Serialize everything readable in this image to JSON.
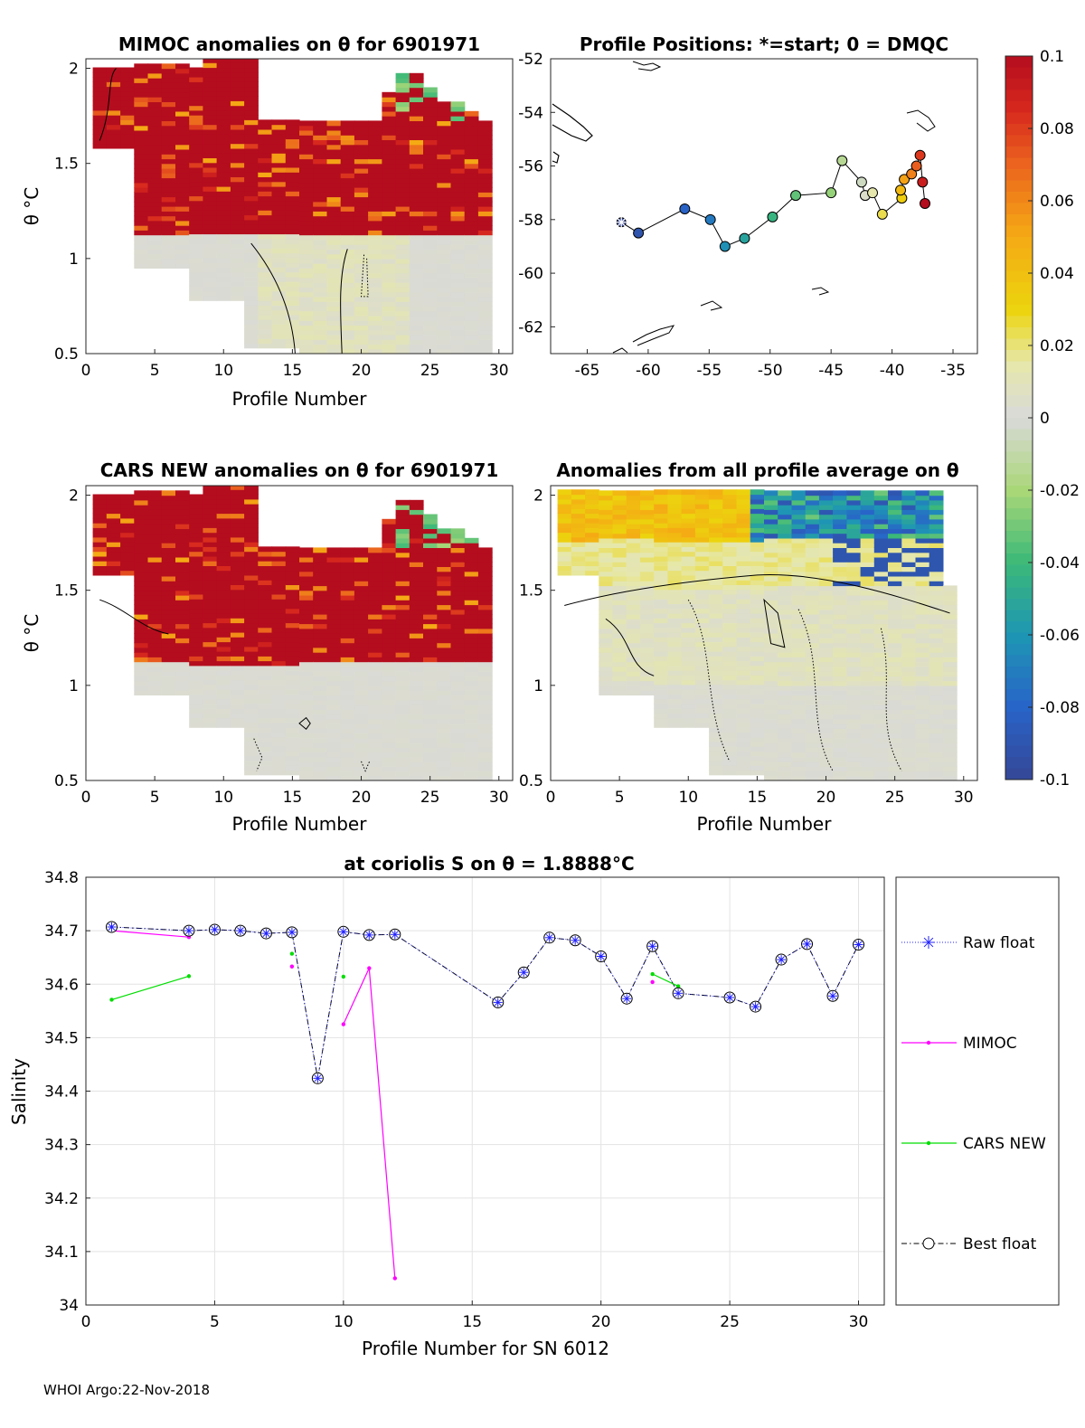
{
  "footer": "WHOI Argo:22-Nov-2018",
  "colorbar": {
    "ticks": [
      "0.1",
      "0.08",
      "0.06",
      "0.04",
      "0.02",
      "0",
      "-0.02",
      "-0.04",
      "-0.06",
      "-0.08",
      "-0.1"
    ],
    "colors": {
      "high": "#b40d1e",
      "mid": "#d9d9d9",
      "low": "#3b4ea0",
      "yellow": "#ecd40e"
    }
  },
  "chart_data": [
    {
      "id": "mimoc",
      "type": "heatmap",
      "title": "MIMOC anomalies on θ  for 6901971",
      "xlabel": "Profile Number",
      "ylabel": "θ °C",
      "xlim": [
        0,
        31
      ],
      "ylim": [
        0.5,
        2.05
      ],
      "xticks": [
        "0",
        "5",
        "10",
        "15",
        "20",
        "25",
        "30"
      ],
      "yticks": [
        "0.5",
        "1",
        "1.5",
        "2"
      ]
    },
    {
      "id": "map",
      "type": "scatter",
      "title": "Profile Positions: *=start; 0 = DMQC",
      "xlabel": "",
      "ylabel": "",
      "xlim": [
        -68,
        -33
      ],
      "ylim": [
        -63,
        -52
      ],
      "xticks": [
        "-65",
        "-60",
        "-55",
        "-50",
        "-45",
        "-40",
        "-35"
      ],
      "yticks": [
        "-52",
        "-54",
        "-56",
        "-58",
        "-60",
        "-62"
      ],
      "lon": [
        -62.2,
        -60.8,
        -57.0,
        -54.9,
        -53.7,
        -52.1,
        -49.8,
        -47.9,
        -45.0,
        -44.1,
        -42.5,
        -42.2,
        -41.6,
        -40.8,
        -39.2,
        -39.3,
        -39.0,
        -38.4,
        -38.0,
        -37.7,
        -37.5,
        -37.3
      ],
      "lat": [
        -58.1,
        -58.5,
        -57.6,
        -58.0,
        -59.0,
        -58.7,
        -57.9,
        -57.1,
        -57.0,
        -55.8,
        -56.6,
        -57.1,
        -57.0,
        -57.8,
        -57.2,
        -56.9,
        -56.5,
        -56.3,
        -56.0,
        -55.6,
        -56.6,
        -57.4
      ]
    },
    {
      "id": "cars",
      "type": "heatmap",
      "title": "CARS NEW anomalies on θ for 6901971",
      "xlabel": "Profile Number",
      "ylabel": "θ °C",
      "xlim": [
        0,
        31
      ],
      "ylim": [
        0.5,
        2.05
      ],
      "xticks": [
        "0",
        "5",
        "10",
        "15",
        "20",
        "25",
        "30"
      ],
      "yticks": [
        "0.5",
        "1",
        "1.5",
        "2"
      ]
    },
    {
      "id": "allavg",
      "type": "heatmap",
      "title": "Anomalies from all profile average on θ",
      "xlabel": "Profile Number",
      "ylabel": "",
      "xlim": [
        0,
        31
      ],
      "ylim": [
        0.5,
        2.05
      ],
      "xticks": [
        "0",
        "5",
        "10",
        "15",
        "20",
        "25",
        "30"
      ],
      "yticks": [
        "0.5",
        "1",
        "1.5",
        "2"
      ]
    },
    {
      "id": "salinity",
      "type": "line",
      "title": "at coriolis S on θ = 1.8888°C",
      "xlabel": "Profile Number for SN 6012",
      "ylabel": "Salinity",
      "xlim": [
        0,
        31
      ],
      "ylim": [
        34.0,
        34.8
      ],
      "xticks": [
        "0",
        "5",
        "10",
        "15",
        "20",
        "25",
        "30"
      ],
      "yticks": [
        "34",
        "34.1",
        "34.2",
        "34.3",
        "34.4",
        "34.5",
        "34.6",
        "34.7",
        "34.8"
      ],
      "series": [
        {
          "name": "Raw float",
          "x": [
            1,
            4,
            5,
            6,
            7,
            8,
            9,
            10,
            11,
            12,
            16,
            17,
            18,
            19,
            20,
            21,
            22,
            23,
            25,
            26,
            27,
            28,
            29,
            30
          ],
          "y": [
            34.707,
            34.7,
            34.702,
            34.7,
            34.695,
            34.697,
            34.424,
            34.698,
            34.692,
            34.693,
            34.566,
            34.622,
            34.687,
            34.682,
            34.652,
            34.573,
            34.671,
            34.583,
            34.575,
            34.558,
            34.646,
            34.675,
            34.578,
            34.674
          ]
        },
        {
          "name": "MIMOC",
          "segments": [
            {
              "x": [
                1,
                4
              ],
              "y": [
                34.7,
                34.688
              ]
            },
            {
              "x": [
                8
              ],
              "y": [
                34.633
              ]
            },
            {
              "x": [
                10,
                11,
                12
              ],
              "y": [
                34.525,
                34.63,
                34.05
              ]
            },
            {
              "x": [
                22
              ],
              "y": [
                34.604
              ]
            }
          ]
        },
        {
          "name": "CARS NEW",
          "segments": [
            {
              "x": [
                1,
                4
              ],
              "y": [
                34.571,
                34.615
              ]
            },
            {
              "x": [
                8
              ],
              "y": [
                34.657
              ]
            },
            {
              "x": [
                10
              ],
              "y": [
                34.614
              ]
            },
            {
              "x": [
                22,
                23
              ],
              "y": [
                34.619,
                34.596
              ]
            }
          ]
        },
        {
          "name": "Best float",
          "x": [
            1,
            4,
            5,
            6,
            7,
            8,
            9,
            10,
            11,
            12,
            16,
            17,
            18,
            19,
            20,
            21,
            22,
            23,
            25,
            26,
            27,
            28,
            29,
            30
          ],
          "y": [
            34.707,
            34.7,
            34.702,
            34.7,
            34.695,
            34.697,
            34.424,
            34.698,
            34.692,
            34.693,
            34.566,
            34.622,
            34.687,
            34.682,
            34.652,
            34.573,
            34.671,
            34.583,
            34.575,
            34.558,
            34.646,
            34.675,
            34.578,
            34.674
          ]
        }
      ]
    }
  ]
}
